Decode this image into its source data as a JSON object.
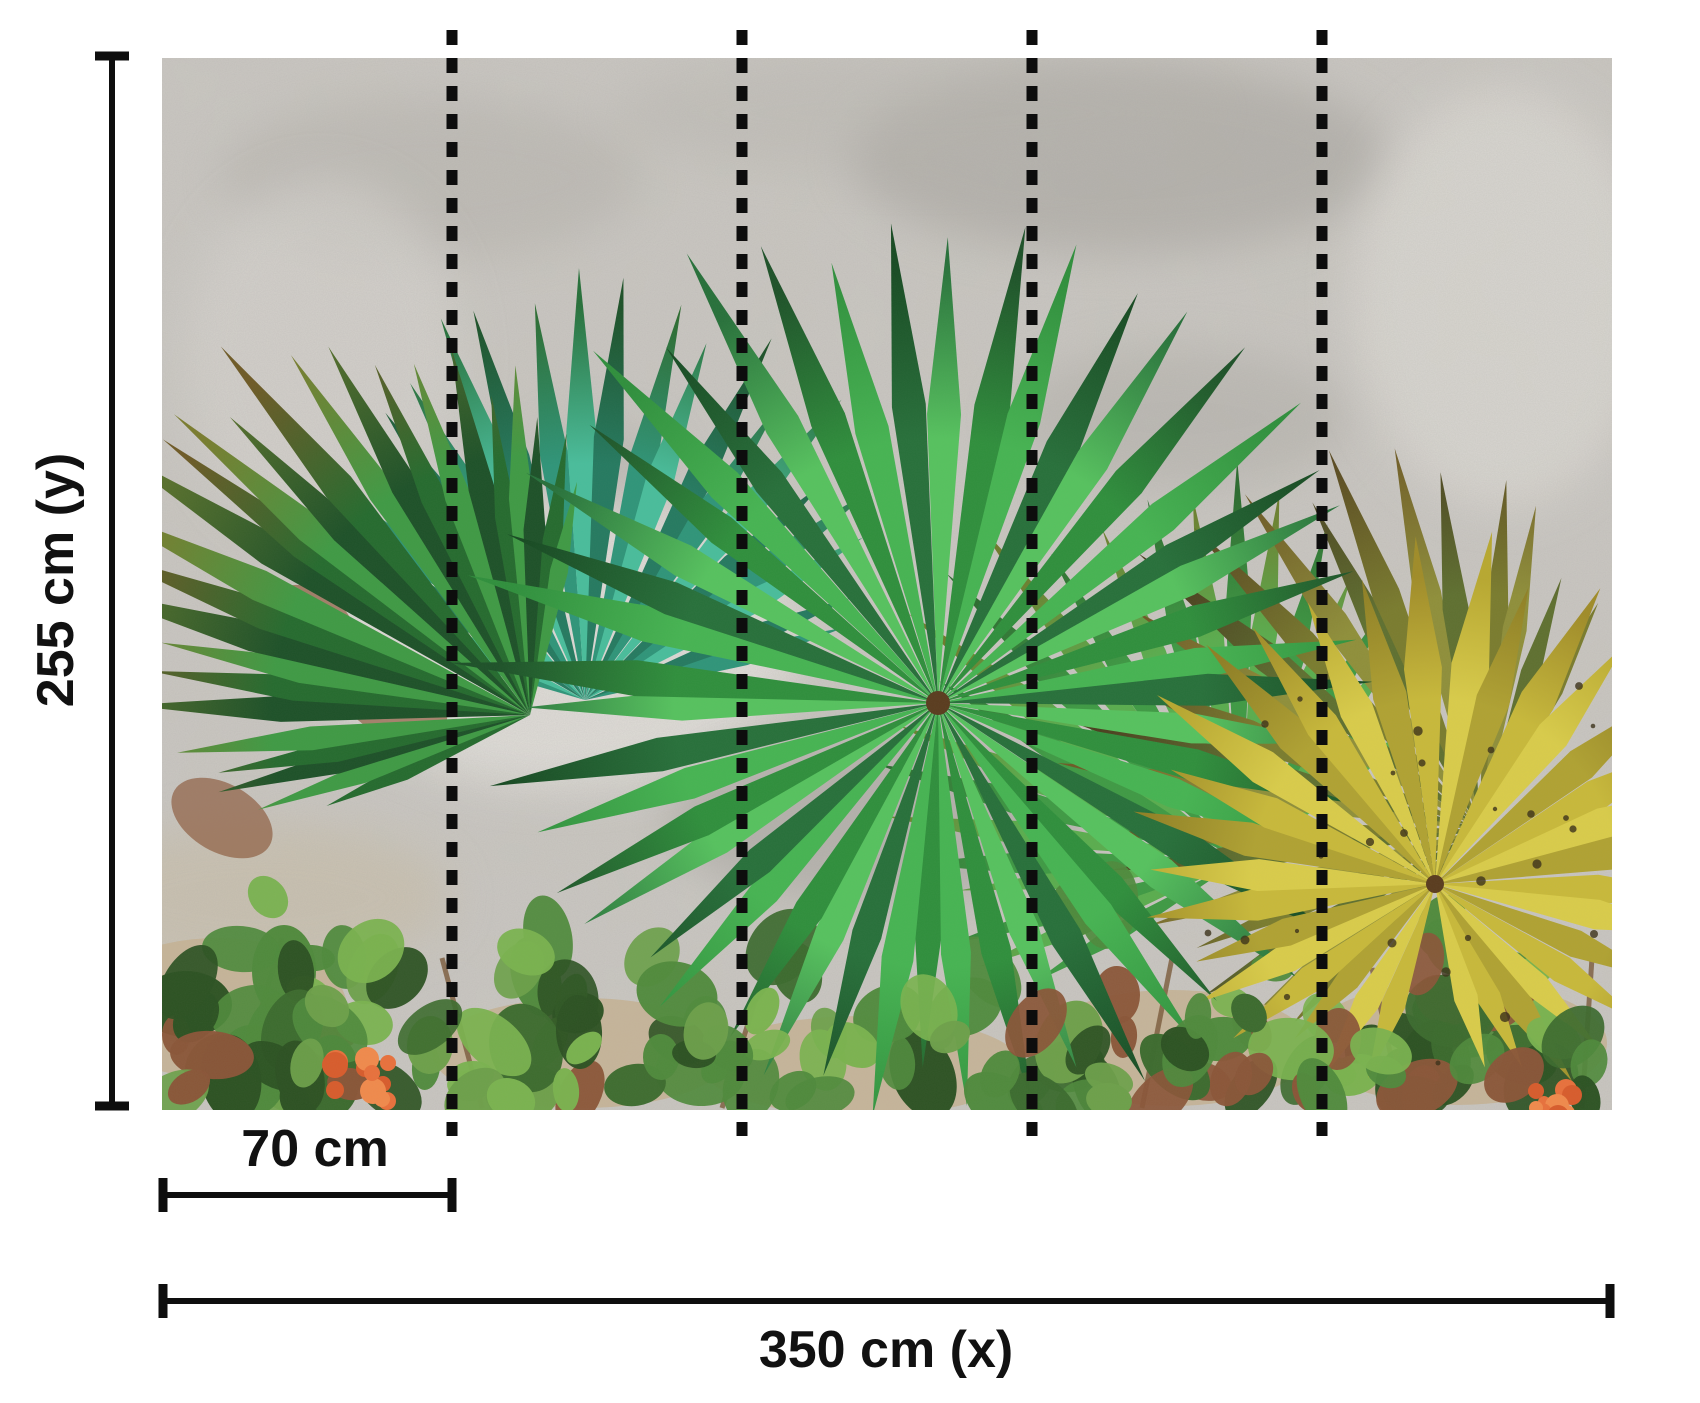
{
  "page": {
    "background": "#ffffff"
  },
  "diagram": {
    "type": "wallpaper-panel-dimension-diagram",
    "labels": {
      "height": "255 cm (y)",
      "panel_width": "70 cm",
      "width": "350 cm (x)"
    },
    "dimensions": {
      "width_cm": 350,
      "height_cm": 255,
      "panel_width_cm": 70,
      "panel_count": 5
    },
    "annotation_color": "#0e0e0e"
  },
  "photo": {
    "subject": "fan-palm-leaves-against-concrete-wall",
    "palette": {
      "wall_base": "#cbc8c2",
      "wall_light": "#e6e4df",
      "wall_shadow": "#9c9993",
      "wall_tan": "#c4b193",
      "green_darkest": "#174a22",
      "green_dark": "#1d5128",
      "green_deep": "#256b2e",
      "green_forest": "#2c6b2f",
      "green_pine": "#27703a",
      "green_mid": "#2f8f3c",
      "green_bright": "#46b452",
      "green_vivid": "#56c25e",
      "green_soft": "#3f9a44",
      "green_leafy": "#5aad4e",
      "teal_dark": "#257a60",
      "teal_mid": "#2f9579",
      "teal_light": "#49bd9b",
      "olive_dark": "#5a4a22",
      "olive": "#6e5a26",
      "olive_mid": "#7a7c2e",
      "olive_light": "#8f8f3a",
      "moss": "#58702c",
      "moss_dark": "#4a3e1e",
      "moss_deep": "#5f7030",
      "khaki": "#6e7a2c",
      "yellow_deep": "#8f7f24",
      "yellow_dark": "#a08c28",
      "yellow_mid": "#c8b93a",
      "yellow_olive": "#b0a232",
      "yellow_bright": "#d9cc4a",
      "yellow_soft": "#b8a830",
      "foliage_green": "#4f8a3c",
      "foliage_dark": "#2c5222",
      "foliage_mid": "#3c6b2e",
      "foliage_light": "#6da04a",
      "foliage_pale": "#7ab34f",
      "leaf_rust": "#8a5638",
      "stem_brown": "#7a5a3a",
      "hub_brown": "#5a3c1e",
      "flower_orange": "#e8713c",
      "flower_deep": "#d85c2c",
      "flower_light": "#f08a4c"
    }
  }
}
